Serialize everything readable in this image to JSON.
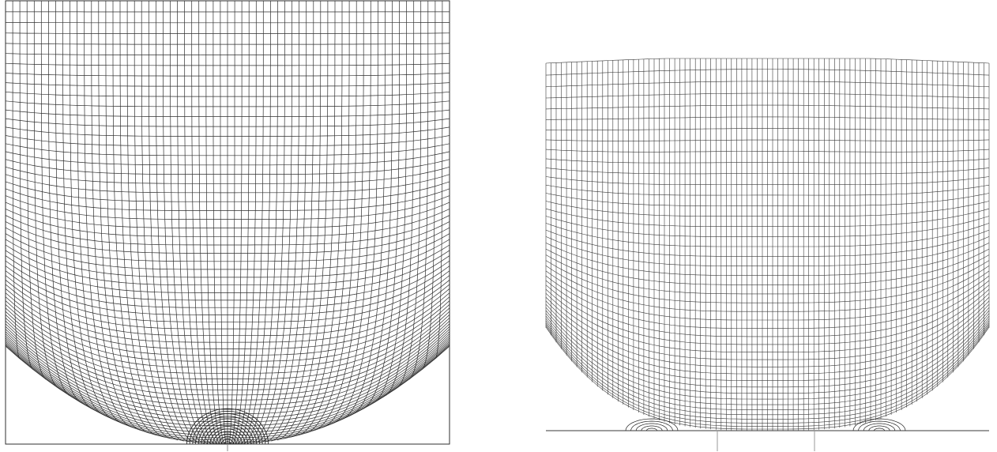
{
  "figure": {
    "panels": [
      {
        "id": "left-mesh",
        "description_visible_text": "",
        "grid_columns": 62,
        "grid_rows": 62,
        "refinement": "single-point",
        "line_color": "#2f2f2f",
        "marker_color": "#888888"
      },
      {
        "id": "right-mesh",
        "description_visible_text": "",
        "grid_columns": 86,
        "grid_rows": 44,
        "refinement": "two-point",
        "line_color": "#3a3a3a",
        "marker_color": "#9a9a9a"
      }
    ]
  }
}
